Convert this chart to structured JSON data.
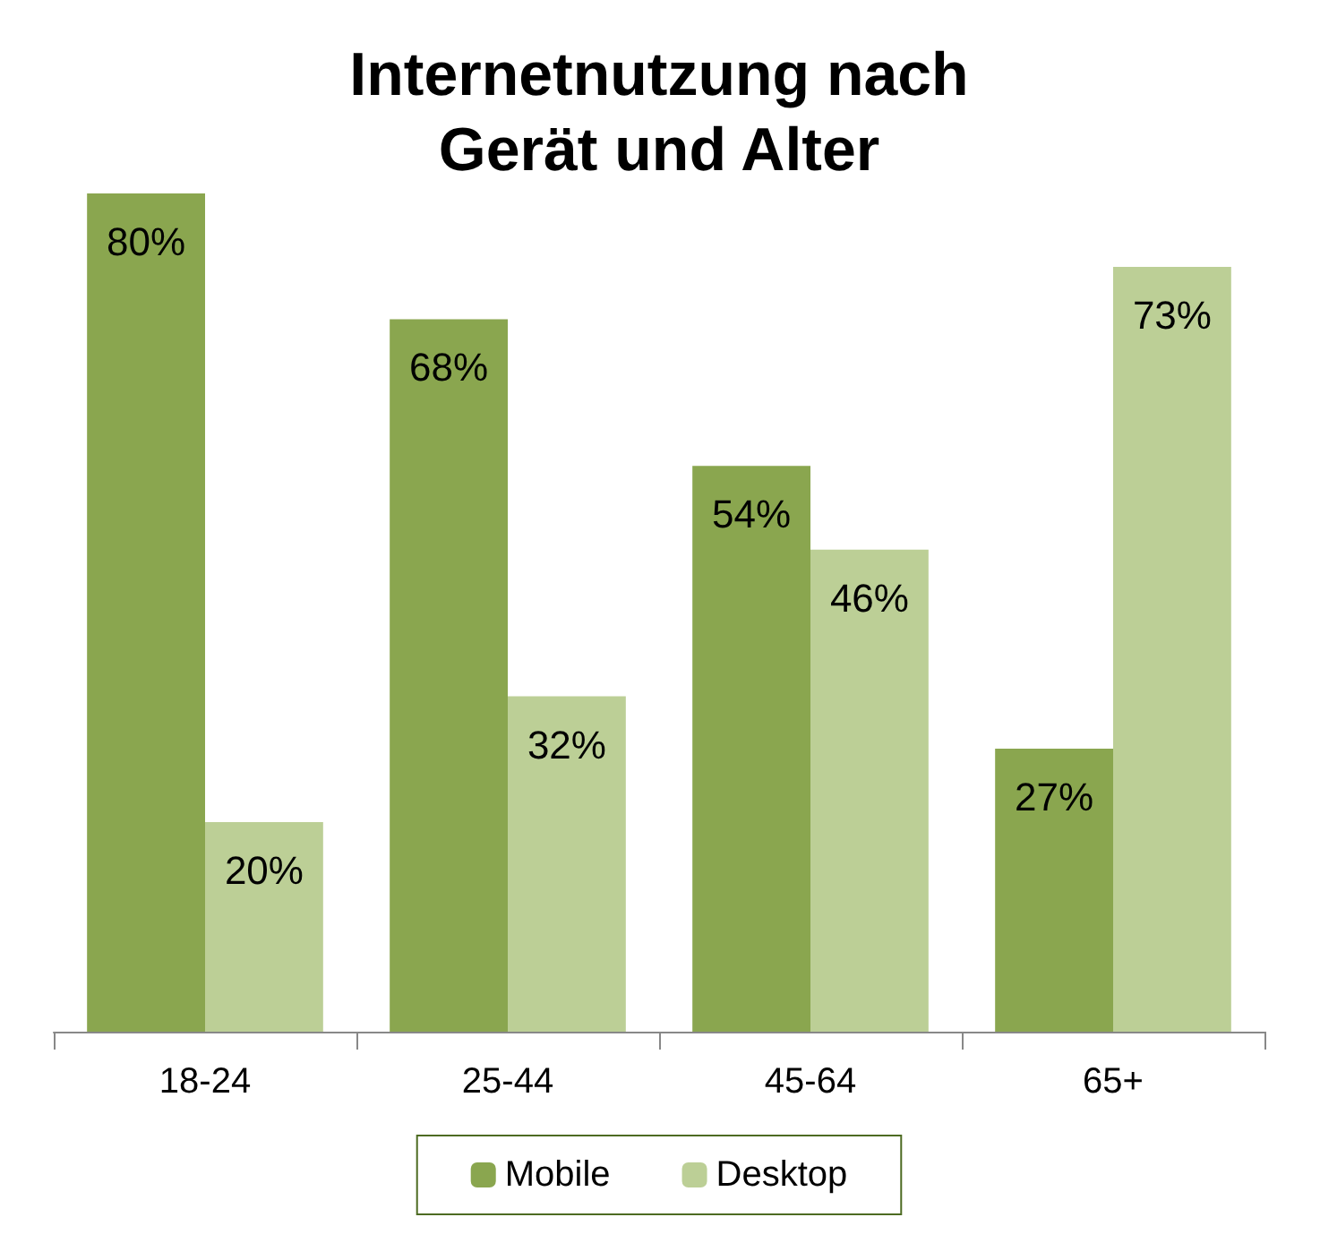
{
  "chart_data": {
    "type": "bar",
    "title": "Internetnutzung nach\nGerät und Alter",
    "categories": [
      "18-24",
      "25-44",
      "45-64",
      "65+"
    ],
    "series": [
      {
        "name": "Mobile",
        "color": "#8aa64f",
        "values": [
          80,
          68,
          54,
          27
        ],
        "value_labels": [
          "80%",
          "68%",
          "54%",
          "27%"
        ]
      },
      {
        "name": "Desktop",
        "color": "#bccf96",
        "values": [
          20,
          32,
          46,
          73
        ],
        "value_labels": [
          "20%",
          "32%",
          "46%",
          "73%"
        ]
      }
    ],
    "legend": "bottom",
    "grid": false
  }
}
